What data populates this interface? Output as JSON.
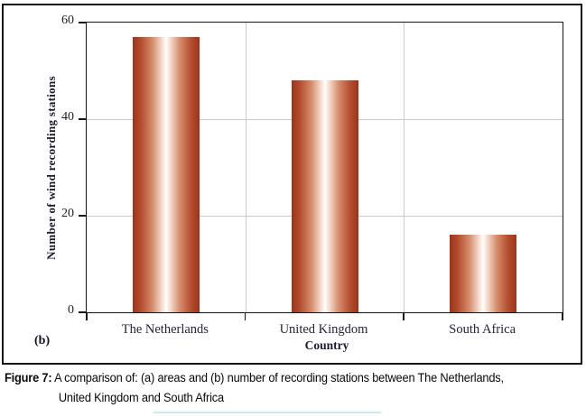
{
  "panel_label": "(b)",
  "chart_data": {
    "type": "bar",
    "categories": [
      "The Netherlands",
      "United Kingdom",
      "South Africa"
    ],
    "values": [
      57,
      48,
      16
    ],
    "title": "",
    "xlabel": "Country",
    "ylabel": "Number of wind recording stations",
    "ylim": [
      0,
      60
    ],
    "yticks": [
      0,
      20,
      40,
      60
    ],
    "grid": "horizontal at 20 and 40, vertical at category boundaries",
    "legend": "none"
  },
  "colors": {
    "bar_edge": "#9e3419",
    "bar_mid1": "#b24c2d",
    "bar_mid2": "#d68f6e",
    "bar_light": "#f6ddd1",
    "bar_highlight": "#ffffff",
    "grid_line": "#cbcbcb",
    "axis_line": "#161616",
    "label_text": "#1d1d2e",
    "caption_text": "#090909",
    "bottom_rule": "#bfe0e2"
  },
  "caption": {
    "label": "Figure 7:",
    "line1": " A comparison of: (a) areas and (b) number of recording stations between The Netherlands,",
    "line2": "United Kingdom and South Africa"
  }
}
